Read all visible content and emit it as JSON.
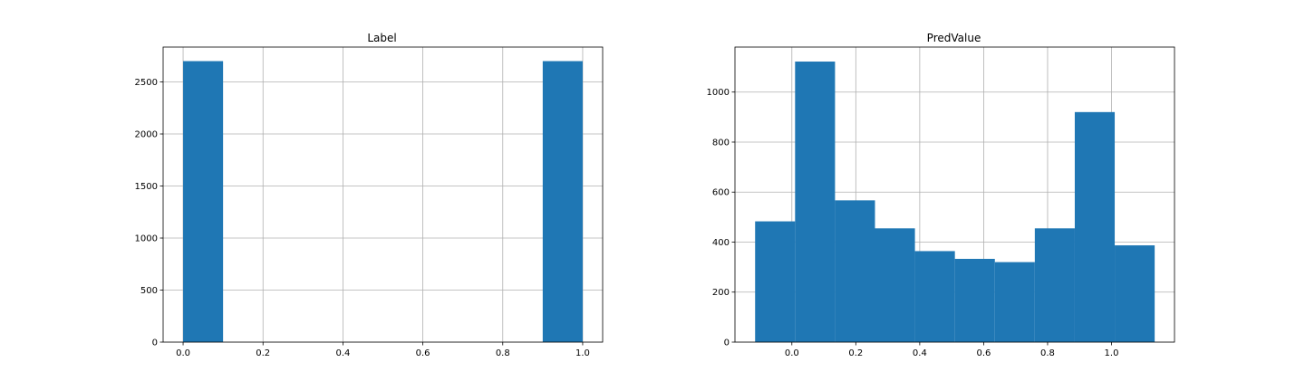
{
  "chart_data": [
    {
      "type": "bar",
      "title": "Label",
      "xlabel": "",
      "ylabel": "",
      "grid": true,
      "color": "#1f77b4",
      "xlim": [
        -0.05,
        1.05
      ],
      "ylim": [
        0,
        2835
      ],
      "xticks": [
        "0.0",
        "0.2",
        "0.4",
        "0.6",
        "0.8",
        "1.0"
      ],
      "yticks": [
        "0",
        "500",
        "1000",
        "1500",
        "2000",
        "2500"
      ],
      "bins": [
        {
          "x0": 0.0,
          "x1": 0.1,
          "value": 2700
        },
        {
          "x0": 0.9,
          "x1": 1.0,
          "value": 2700
        }
      ]
    },
    {
      "type": "bar",
      "title": "PredValue",
      "xlabel": "",
      "ylabel": "",
      "grid": true,
      "color": "#1f77b4",
      "xlim": [
        -0.178,
        1.197
      ],
      "ylim": [
        0,
        1180
      ],
      "xticks": [
        "0.0",
        "0.2",
        "0.4",
        "0.6",
        "0.8",
        "1.0"
      ],
      "yticks": [
        "0",
        "200",
        "400",
        "600",
        "800",
        "1000"
      ],
      "bins": [
        {
          "x0": -0.115,
          "x1": 0.01,
          "value": 483
        },
        {
          "x0": 0.01,
          "x1": 0.135,
          "value": 1122
        },
        {
          "x0": 0.135,
          "x1": 0.26,
          "value": 567
        },
        {
          "x0": 0.26,
          "x1": 0.385,
          "value": 455
        },
        {
          "x0": 0.385,
          "x1": 0.51,
          "value": 364
        },
        {
          "x0": 0.51,
          "x1": 0.635,
          "value": 333
        },
        {
          "x0": 0.635,
          "x1": 0.76,
          "value": 320
        },
        {
          "x0": 0.76,
          "x1": 0.885,
          "value": 455
        },
        {
          "x0": 0.885,
          "x1": 1.01,
          "value": 920
        },
        {
          "x0": 1.01,
          "x1": 1.135,
          "value": 387
        }
      ]
    }
  ]
}
